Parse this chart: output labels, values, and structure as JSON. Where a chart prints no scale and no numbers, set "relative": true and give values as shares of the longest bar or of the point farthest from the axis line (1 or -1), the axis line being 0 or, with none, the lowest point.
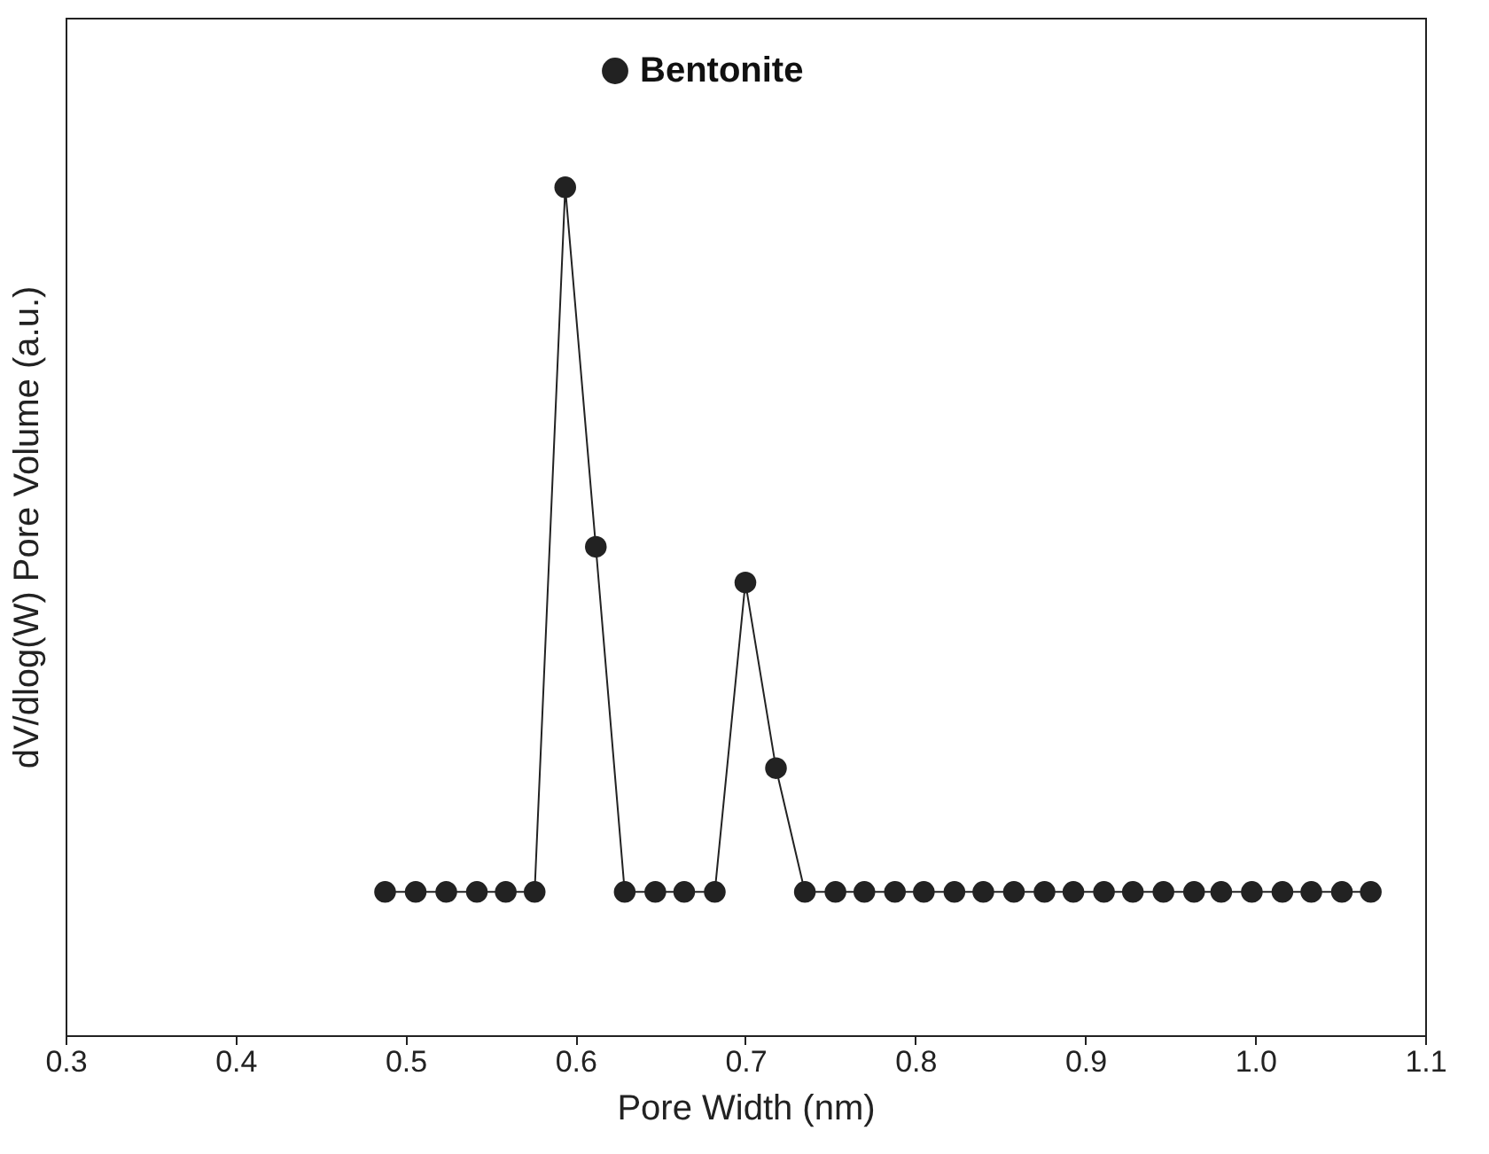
{
  "chart_data": {
    "type": "line",
    "xlabel": "Pore Width (nm)",
    "ylabel": "dV/dlog(W) Pore Volume (a.u.)",
    "relative": true,
    "xlim": [
      0.3,
      1.1
    ],
    "xticks": [
      {
        "value": 0.3,
        "label": "0.3"
      },
      {
        "value": 0.4,
        "label": "0.4"
      },
      {
        "value": 0.5,
        "label": "0.5"
      },
      {
        "value": 0.6,
        "label": "0.6"
      },
      {
        "value": 0.7,
        "label": "0.7"
      },
      {
        "value": 0.8,
        "label": "0.8"
      },
      {
        "value": 0.9,
        "label": "0.9"
      },
      {
        "value": 1.0,
        "label": "1.0"
      },
      {
        "value": 1.1,
        "label": "1.1"
      }
    ],
    "tick_labels": "x",
    "marker": "circle",
    "legend": "top",
    "grid": false,
    "x": [
      0.488,
      0.506,
      0.524,
      0.542,
      0.559,
      0.576,
      0.594,
      0.612,
      0.629,
      0.647,
      0.664,
      0.682,
      0.7,
      0.718,
      0.735,
      0.753,
      0.77,
      0.788,
      0.805,
      0.823,
      0.84,
      0.858,
      0.876,
      0.893,
      0.911,
      0.928,
      0.946,
      0.964,
      0.98,
      0.998,
      1.016,
      1.033,
      1.051,
      1.068
    ],
    "series": [
      {
        "name": "Bentonite",
        "color": "#222222",
        "values": [
          0.169,
          0.169,
          0.169,
          0.169,
          0.169,
          0.169,
          1,
          0.576,
          0.169,
          0.169,
          0.169,
          0.169,
          0.534,
          0.315,
          0.169,
          0.169,
          0.169,
          0.169,
          0.169,
          0.169,
          0.169,
          0.169,
          0.169,
          0.169,
          0.169,
          0.169,
          0.169,
          0.169,
          0.169,
          0.169,
          0.169,
          0.169,
          0.169,
          0.169
        ]
      }
    ]
  }
}
